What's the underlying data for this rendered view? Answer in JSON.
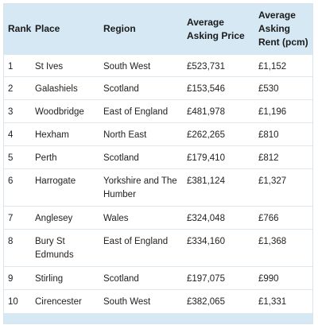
{
  "table": {
    "headers": {
      "rank": "Rank",
      "place": "Place",
      "region": "Region",
      "price": "Average Asking Price",
      "rent": "Average Asking Rent (pcm)"
    },
    "rows": [
      {
        "rank": "1",
        "place": "St Ives",
        "region": "South West",
        "price": "£523,731",
        "rent": "£1,152"
      },
      {
        "rank": "2",
        "place": "Galashiels",
        "region": "Scotland",
        "price": "£153,546",
        "rent": "£530"
      },
      {
        "rank": "3",
        "place": "Woodbridge",
        "region": "East of England",
        "price": "£481,978",
        "rent": "£1,196"
      },
      {
        "rank": "4",
        "place": "Hexham",
        "region": "North East",
        "price": "£262,265",
        "rent": "£810"
      },
      {
        "rank": "5",
        "place": "Perth",
        "region": "Scotland",
        "price": "£179,410",
        "rent": "£812"
      },
      {
        "rank": "6",
        "place": "Harrogate",
        "region": "Yorkshire and The Humber",
        "price": "£381,124",
        "rent": "£1,327"
      },
      {
        "rank": "7",
        "place": "Anglesey",
        "region": "Wales",
        "price": "£324,048",
        "rent": "£766"
      },
      {
        "rank": "8",
        "place": "Bury St Edmunds",
        "region": "East of England",
        "price": "£334,160",
        "rent": "£1,368"
      },
      {
        "rank": "9",
        "place": "Stirling",
        "region": "Scotland",
        "price": "£197,075",
        "rent": "£990"
      },
      {
        "rank": "10",
        "place": "Cirencester",
        "region": "South West",
        "price": "£382,065",
        "rent": "£1,331"
      }
    ]
  },
  "colors": {
    "header_bg": "#d5e8f4",
    "row_border": "#dfe7ee"
  }
}
